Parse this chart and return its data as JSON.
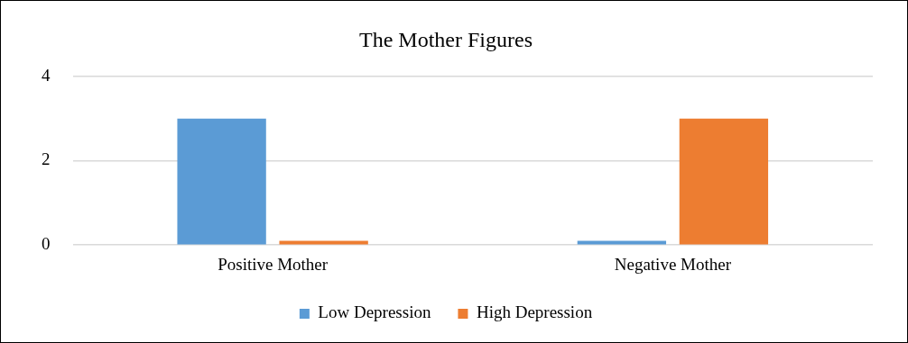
{
  "chart_data": {
    "type": "bar",
    "title": "The Mother Figures",
    "categories": [
      "Positive Mother",
      "Negative Mother"
    ],
    "series": [
      {
        "name": "Low Depression",
        "color": "#5b9bd5",
        "values": [
          3,
          0.1
        ]
      },
      {
        "name": "High Depression",
        "color": "#ed7d31",
        "values": [
          0.1,
          3
        ]
      }
    ],
    "ylim": [
      0,
      4
    ],
    "yticks": [
      0,
      2,
      4
    ],
    "grid": "y",
    "legend": "bottom"
  }
}
